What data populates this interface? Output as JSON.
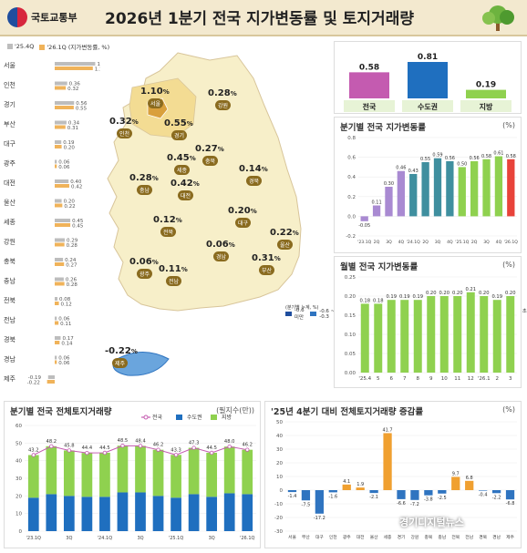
{
  "header": {
    "org": "국토교통부",
    "title": "2026년 1분기 전국 지가변동률 및 토지거래량"
  },
  "regional_legend": {
    "prev": "'25.4Q",
    "curr": "'26.1Q",
    "unit": "(지가변동률, %)"
  },
  "colors": {
    "prev": "#bdbdbd",
    "curr": "#f0b35a",
    "national": "#c45bb0",
    "metro": "#1f6fbf",
    "local": "#8fd14f",
    "up": "#2f74c0",
    "down": "#2f74c0",
    "highlight": "#e8433a"
  },
  "regional_bars": [
    {
      "name": "서울",
      "prev": 1.17,
      "curr": 1.1,
      "prev_label": "1.17",
      "curr_label": "1.10"
    },
    {
      "name": "인천",
      "prev": 0.36,
      "curr": 0.32,
      "prev_label": "0.36",
      "curr_label": "0.32"
    },
    {
      "name": "경기",
      "prev": 0.56,
      "curr": 0.55,
      "prev_label": "0.56",
      "curr_label": "0.55"
    },
    {
      "name": "부산",
      "prev": 0.34,
      "curr": 0.31,
      "prev_label": "0.34",
      "curr_label": "0.31"
    },
    {
      "name": "대구",
      "prev": 0.19,
      "curr": 0.2,
      "prev_label": "0.19",
      "curr_label": "0.20"
    },
    {
      "name": "광주",
      "prev": 0.06,
      "curr": 0.06,
      "prev_label": "0.06",
      "curr_label": "0.06"
    },
    {
      "name": "대전",
      "prev": 0.4,
      "curr": 0.42,
      "prev_label": "0.40",
      "curr_label": "0.42"
    },
    {
      "name": "울산",
      "prev": 0.2,
      "curr": 0.22,
      "prev_label": "0.20",
      "curr_label": "0.22"
    },
    {
      "name": "세종",
      "prev": 0.45,
      "curr": 0.45,
      "prev_label": "0.45",
      "curr_label": "0.45"
    },
    {
      "name": "강원",
      "prev": 0.29,
      "curr": 0.28,
      "prev_label": "0.29",
      "curr_label": "0.28"
    },
    {
      "name": "충북",
      "prev": 0.24,
      "curr": 0.27,
      "prev_label": "0.24",
      "curr_label": "0.27"
    },
    {
      "name": "충남",
      "prev": 0.26,
      "curr": 0.28,
      "prev_label": "0.26",
      "curr_label": "0.28"
    },
    {
      "name": "전북",
      "prev": 0.08,
      "curr": 0.12,
      "prev_label": "0.08",
      "curr_label": "0.12"
    },
    {
      "name": "전남",
      "prev": 0.06,
      "curr": 0.11,
      "prev_label": "0.06",
      "curr_label": "0.11"
    },
    {
      "name": "경북",
      "prev": 0.17,
      "curr": 0.14,
      "prev_label": "0.17",
      "curr_label": "0.14"
    },
    {
      "name": "경남",
      "prev": 0.06,
      "curr": 0.06,
      "prev_label": "0.06",
      "curr_label": "0.06"
    },
    {
      "name": "제주",
      "prev": -0.19,
      "curr": -0.22,
      "prev_label": "-0.19",
      "curr_label": "-0.22"
    }
  ],
  "map_values": [
    {
      "name": "서울",
      "value": "1.10"
    },
    {
      "name": "강원",
      "value": "0.28"
    },
    {
      "name": "인천",
      "value": "0.32"
    },
    {
      "name": "경기",
      "value": "0.55"
    },
    {
      "name": "충북",
      "value": "0.27"
    },
    {
      "name": "세종",
      "value": "0.45"
    },
    {
      "name": "경북",
      "value": "0.14"
    },
    {
      "name": "충남",
      "value": "0.28"
    },
    {
      "name": "대전",
      "value": "0.42"
    },
    {
      "name": "대구",
      "value": "0.20"
    },
    {
      "name": "전북",
      "value": "0.12"
    },
    {
      "name": "울산",
      "value": "0.22"
    },
    {
      "name": "경남",
      "value": "0.06"
    },
    {
      "name": "광주",
      "value": "0.06"
    },
    {
      "name": "전남",
      "value": "0.11"
    },
    {
      "name": "부산",
      "value": "0.31"
    },
    {
      "name": "제주",
      "value": "-0.22"
    }
  ],
  "map_legend": {
    "title": "(분기별 누계, %)",
    "items": [
      "-0.6 미만",
      "-0.6 ~ -0.3",
      "-0.3 ~ 0.0",
      "0.0 ~ 0.3",
      "0.3 ~ 0.6",
      "0.6 ~ 0.9",
      "0.9 ~ 1.2",
      "1.2 ~ 1.5",
      "1.5 초과"
    ],
    "colors": [
      "#1f4e9e",
      "#2f74c0",
      "#6aa5dd",
      "#f7efc9",
      "#f3dc93",
      "#e9c062",
      "#d9a03c",
      "#b97a22",
      "#8a4f12"
    ]
  },
  "summary": {
    "chart_data": {
      "type": "bar",
      "categories": [
        "전국",
        "수도권",
        "지방"
      ],
      "values": [
        0.58,
        0.81,
        0.19
      ],
      "labels": [
        "0.58",
        "0.81",
        "0.19"
      ]
    }
  },
  "quarterly": {
    "title": "분기별 전국 지가변동률",
    "unit": "(%)",
    "chart_data": {
      "type": "bar",
      "categories": [
        "'23.1Q",
        "2Q",
        "3Q",
        "4Q",
        "'24.1Q",
        "2Q",
        "3Q",
        "4Q",
        "'25.1Q",
        "2Q",
        "3Q",
        "4Q",
        "'26.1Q"
      ],
      "values": [
        -0.05,
        0.11,
        0.3,
        0.46,
        0.43,
        0.55,
        0.59,
        0.56,
        0.5,
        0.56,
        0.58,
        0.61,
        0.58
      ],
      "labels": [
        "-0.05",
        "0.11",
        "0.30",
        "0.46",
        "0.43",
        "0.55",
        "0.59",
        "0.56",
        "0.50",
        "0.56",
        "0.58",
        "0.61",
        "0.58"
      ],
      "ticks": [
        "'23.1Q",
        "2Q",
        "3Q",
        "4Q",
        "'24.1Q",
        "2Q",
        "3Q",
        "4Q",
        "'25.1Q",
        "2Q",
        "3Q",
        "4Q",
        "'26.1Q"
      ],
      "yticks": [
        "0.8",
        "0.6",
        "0.4",
        "0.2",
        "0.0",
        "-0.2"
      ],
      "ylim": [
        -0.2,
        0.8
      ]
    }
  },
  "monthly": {
    "title": "월별 전국 지가변동률",
    "unit": "(%)",
    "chart_data": {
      "type": "bar",
      "categories": [
        "'25.4",
        "5",
        "6",
        "7",
        "8",
        "9",
        "10",
        "11",
        "12",
        "'26.1",
        "2",
        "3"
      ],
      "values": [
        0.18,
        0.18,
        0.19,
        0.19,
        0.19,
        0.2,
        0.2,
        0.2,
        0.21,
        0.2,
        0.19,
        0.2
      ],
      "labels": [
        "0.18",
        "0.18",
        "0.19",
        "0.19",
        "0.19",
        "0.20",
        "0.20",
        "0.20",
        "0.21",
        "0.20",
        "0.19",
        "0.20"
      ],
      "yticks": [
        "0.25",
        "0.20",
        "0.15",
        "0.10",
        "0.05",
        "0.00"
      ],
      "ylim": [
        0,
        0.25
      ]
    }
  },
  "volume": {
    "title": "분기별 전국 전체토지거래량",
    "unit": "(필지수(만))",
    "legend": [
      "전국",
      "수도권",
      "지방"
    ],
    "chart_data": {
      "type": "bar",
      "categories": [
        "'23.1Q",
        "2Q",
        "3Q",
        "4Q",
        "'24.1Q",
        "2Q",
        "3Q",
        "4Q",
        "'25.1Q",
        "2Q",
        "3Q",
        "4Q",
        "'26.1Q"
      ],
      "series": [
        {
          "name": "전국",
          "values": [
            43.2,
            48.2,
            45.8,
            44.4,
            44.5,
            48.5,
            48.4,
            46.2,
            43.3,
            47.3,
            44.5,
            48.0,
            46.2
          ]
        },
        {
          "name": "수도권",
          "values": [
            19,
            21,
            20,
            19.5,
            19.5,
            22,
            22,
            20,
            19,
            21,
            19.5,
            21.5,
            21
          ]
        },
        {
          "name": "지방",
          "values": [
            24.2,
            27.2,
            25.8,
            24.9,
            25.0,
            26.5,
            26.4,
            26.2,
            24.3,
            26.3,
            25.0,
            26.5,
            25.2
          ]
        }
      ],
      "labels": [
        "43.2",
        "48.2",
        "45.8",
        "44.4",
        "44.5",
        "48.5",
        "48.4",
        "46.2",
        "43.3",
        "47.3",
        "44.5",
        "48.0",
        "46.2"
      ],
      "ticks": [
        "'23.1Q",
        "",
        "3Q",
        "",
        "'24.1Q",
        "",
        "3Q",
        "",
        "'25.1Q",
        "",
        "3Q",
        "",
        "'26.1Q"
      ],
      "yticks": [
        "60",
        "50",
        "40",
        "30",
        "20",
        "10",
        "0"
      ],
      "ylim": [
        0,
        60
      ]
    }
  },
  "change": {
    "title": "'25년 4분기 대비 전체토지거래량 증감률",
    "unit": "(%)",
    "chart_data": {
      "type": "bar",
      "categories": [
        "서울",
        "부산",
        "대구",
        "인천",
        "광주",
        "대전",
        "울산",
        "세종",
        "경기",
        "강원",
        "충북",
        "충남",
        "전북",
        "전남",
        "경북",
        "경남",
        "제주"
      ],
      "values": [
        -1.4,
        -7.5,
        -17.2,
        -1.6,
        4.1,
        1.9,
        -2.1,
        41.7,
        -6.6,
        -7.2,
        -3.8,
        -2.5,
        9.7,
        6.8,
        -0.4,
        -2.2,
        -6.8
      ],
      "labels": [
        "-1.4",
        "-7.5",
        "-17.2",
        "-1.6",
        "4.1",
        "1.9",
        "-2.1",
        "41.7",
        "-6.6",
        "-7.2",
        "-3.8",
        "-2.5",
        "9.7",
        "6.8",
        "-0.4",
        "-2.2",
        "-6.8"
      ],
      "yticks": [
        "50",
        "40",
        "30",
        "20",
        "10",
        "0",
        "-10",
        "-20",
        "-30"
      ],
      "ylim": [
        -30,
        50
      ]
    }
  },
  "watermark": "경기디지털뉴스"
}
